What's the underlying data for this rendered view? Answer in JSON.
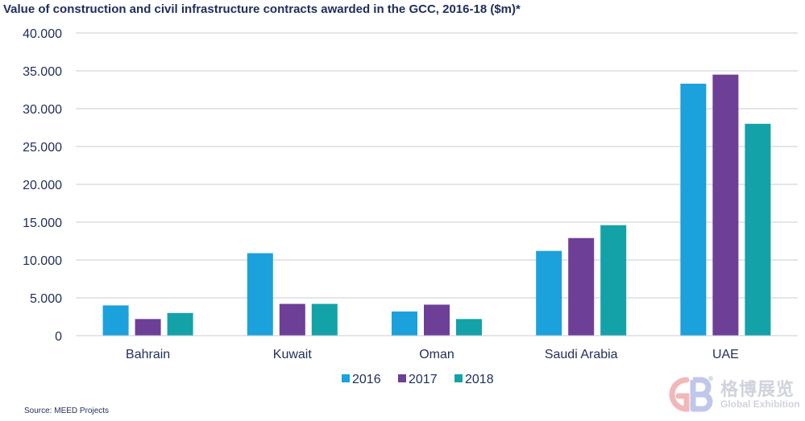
{
  "title": "Value of construction and civil infrastructure contracts awarded in the GCC, 2016-18 ($m)*",
  "source": "Source: MEED Projects",
  "watermark": {
    "name_cn": "格博展览",
    "name_en": "Global Exhibition"
  },
  "chart_data": {
    "type": "bar",
    "title": "Value of construction and civil infrastructure contracts awarded in the GCC, 2016-18 ($m)*",
    "xlabel": "",
    "ylabel": "",
    "categories": [
      "Bahrain",
      "Kuwait",
      "Oman",
      "Saudi Arabia",
      "UAE"
    ],
    "series": [
      {
        "name": "2016",
        "color": "#1ba1dc",
        "values": [
          4000,
          10900,
          3200,
          11200,
          33300
        ]
      },
      {
        "name": "2017",
        "color": "#6d3f96",
        "values": [
          2200,
          4200,
          4100,
          12900,
          34500
        ]
      },
      {
        "name": "2018",
        "color": "#13a2a8",
        "values": [
          3000,
          4200,
          2200,
          14600,
          28000
        ]
      }
    ],
    "ylim": [
      0,
      40000
    ],
    "yticks": [
      0,
      5000,
      10000,
      15000,
      20000,
      25000,
      30000,
      35000,
      40000
    ],
    "ytick_labels": [
      "0",
      "5.000",
      "10.000",
      "15.000",
      "20.000",
      "25.000",
      "30.000",
      "35.000",
      "40.000"
    ],
    "grid": true,
    "legend_position": "bottom-center"
  }
}
